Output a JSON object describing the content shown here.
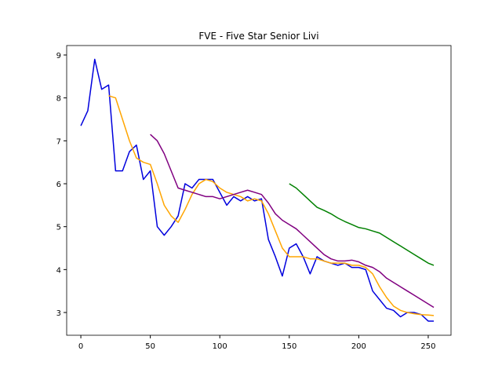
{
  "chart_data": {
    "type": "line",
    "title": "FVE - Five Star Senior Livi",
    "x": [
      0,
      5,
      10,
      15,
      20,
      25,
      30,
      35,
      40,
      45,
      50,
      55,
      60,
      65,
      70,
      75,
      80,
      85,
      90,
      95,
      100,
      105,
      110,
      115,
      120,
      125,
      130,
      135,
      140,
      145,
      150,
      155,
      160,
      165,
      170,
      175,
      180,
      185,
      190,
      195,
      200,
      205,
      210,
      215,
      220,
      225,
      230,
      235,
      240,
      245,
      250,
      254
    ],
    "series": [
      {
        "color": "#0000dd",
        "values": [
          7.35,
          7.7,
          8.9,
          8.2,
          8.3,
          6.3,
          6.3,
          6.75,
          6.9,
          6.1,
          6.3,
          5.0,
          4.8,
          5.0,
          5.25,
          6.0,
          5.9,
          6.1,
          6.1,
          6.1,
          5.8,
          5.5,
          5.7,
          5.6,
          5.7,
          5.6,
          5.65,
          4.7,
          4.3,
          3.85,
          4.5,
          4.6,
          4.3,
          3.9,
          4.3,
          4.2,
          4.15,
          4.1,
          4.15,
          4.05,
          4.05,
          4.0,
          3.5,
          3.3,
          3.1,
          3.05,
          2.9,
          3.0,
          3.0,
          2.95,
          2.8,
          2.8
        ]
      },
      {
        "color": "orange",
        "values": [
          null,
          null,
          null,
          null,
          8.05,
          8.0,
          7.5,
          7.0,
          6.6,
          6.5,
          6.45,
          6.0,
          5.5,
          5.25,
          5.1,
          5.4,
          5.75,
          6.0,
          6.1,
          6.05,
          5.9,
          5.8,
          5.75,
          5.7,
          5.6,
          5.65,
          5.6,
          5.3,
          4.9,
          4.5,
          4.3,
          4.3,
          4.3,
          4.25,
          4.25,
          4.2,
          4.15,
          4.15,
          4.15,
          4.1,
          4.1,
          4.05,
          3.9,
          3.6,
          3.35,
          3.15,
          3.05,
          3.0,
          2.97,
          2.95,
          2.94,
          2.93
        ]
      },
      {
        "color": "purple",
        "values": [
          null,
          null,
          null,
          null,
          null,
          null,
          null,
          null,
          null,
          null,
          7.15,
          7.0,
          6.7,
          6.3,
          5.9,
          5.85,
          5.8,
          5.75,
          5.7,
          5.7,
          5.65,
          5.7,
          5.75,
          5.8,
          5.85,
          5.8,
          5.75,
          5.55,
          5.3,
          5.15,
          5.05,
          4.95,
          4.8,
          4.65,
          4.5,
          4.35,
          4.25,
          4.2,
          4.2,
          4.22,
          4.18,
          4.1,
          4.05,
          3.95,
          3.8,
          3.7,
          3.6,
          3.5,
          3.4,
          3.3,
          3.2,
          3.12
        ]
      },
      {
        "color": "green",
        "values": [
          null,
          null,
          null,
          null,
          null,
          null,
          null,
          null,
          null,
          null,
          null,
          null,
          null,
          null,
          null,
          null,
          null,
          null,
          null,
          null,
          null,
          null,
          null,
          null,
          null,
          null,
          null,
          null,
          null,
          null,
          6.0,
          5.9,
          5.75,
          5.6,
          5.45,
          5.38,
          5.3,
          5.2,
          5.12,
          5.05,
          4.98,
          4.95,
          4.9,
          4.85,
          4.75,
          4.65,
          4.55,
          4.45,
          4.35,
          4.25,
          4.15,
          4.1
        ]
      }
    ],
    "xlim": [
      -10.2,
      266.4
    ],
    "ylim": [
      2.47,
      9.22
    ],
    "xticks": [
      0,
      50,
      100,
      150,
      200,
      250
    ],
    "yticks": [
      3,
      4,
      5,
      6,
      7,
      8,
      9
    ]
  }
}
